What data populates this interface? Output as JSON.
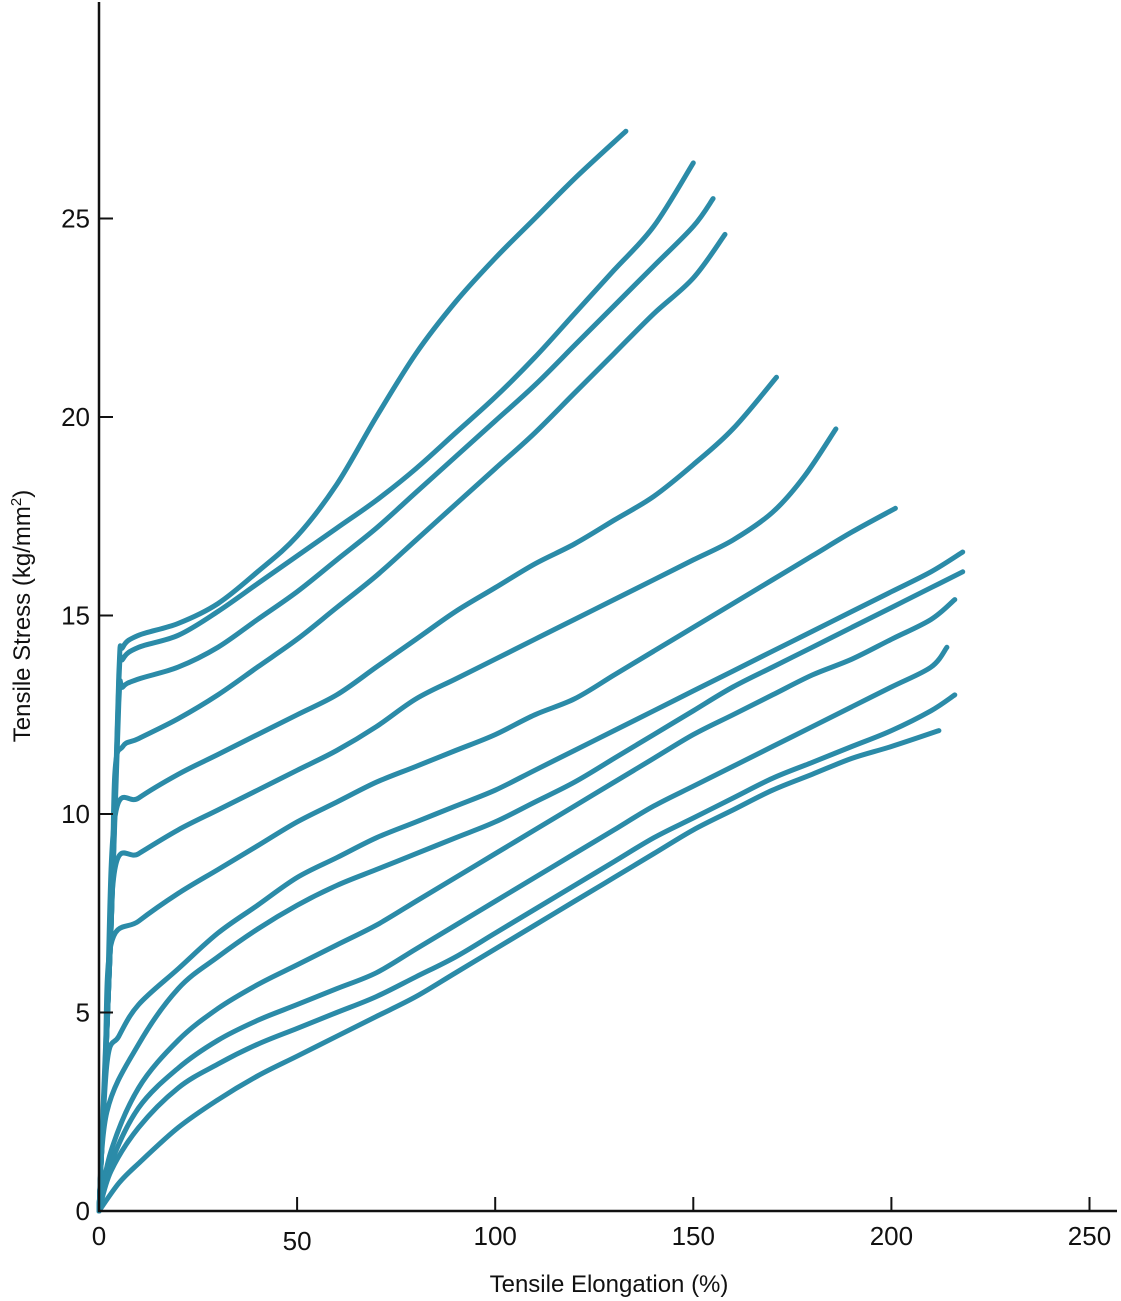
{
  "chart_data": {
    "type": "line",
    "xlabel": "Tensile Elongation (%)",
    "ylabel_main": "Tensile Stress (kg/mm",
    "ylabel_sup": "2",
    "ylabel_end": ")",
    "xlim": [
      0,
      258
    ],
    "ylim": [
      0,
      30.5
    ],
    "xticks": [
      0,
      50,
      100,
      150,
      200,
      250
    ],
    "yticks": [
      0,
      5,
      10,
      15,
      20,
      25
    ],
    "grid": false,
    "line_color": "#2b8ba8",
    "series": [
      {
        "points": [
          [
            0,
            0
          ],
          [
            3,
            7
          ],
          [
            5,
            13.5
          ],
          [
            6,
            14.2
          ],
          [
            10,
            14.5
          ],
          [
            20,
            14.8
          ],
          [
            30,
            15.3
          ],
          [
            40,
            16.1
          ],
          [
            50,
            17.0
          ],
          [
            60,
            18.3
          ],
          [
            70,
            20.0
          ],
          [
            80,
            21.6
          ],
          [
            90,
            22.9
          ],
          [
            100,
            24.0
          ],
          [
            110,
            25.0
          ],
          [
            120,
            26.0
          ],
          [
            133,
            27.2
          ]
        ]
      },
      {
        "points": [
          [
            0,
            0
          ],
          [
            3,
            7
          ],
          [
            5,
            13.3
          ],
          [
            6,
            13.9
          ],
          [
            10,
            14.2
          ],
          [
            20,
            14.5
          ],
          [
            30,
            15.1
          ],
          [
            40,
            15.8
          ],
          [
            50,
            16.5
          ],
          [
            60,
            17.2
          ],
          [
            70,
            17.9
          ],
          [
            80,
            18.7
          ],
          [
            90,
            19.6
          ],
          [
            100,
            20.5
          ],
          [
            110,
            21.5
          ],
          [
            120,
            22.6
          ],
          [
            130,
            23.7
          ],
          [
            140,
            24.8
          ],
          [
            150,
            26.4
          ]
        ]
      },
      {
        "points": [
          [
            0,
            0
          ],
          [
            3,
            7
          ],
          [
            5,
            12.8
          ],
          [
            6,
            13.2
          ],
          [
            10,
            13.4
          ],
          [
            20,
            13.7
          ],
          [
            30,
            14.2
          ],
          [
            40,
            14.9
          ],
          [
            50,
            15.6
          ],
          [
            60,
            16.4
          ],
          [
            70,
            17.2
          ],
          [
            80,
            18.1
          ],
          [
            90,
            19.0
          ],
          [
            100,
            19.9
          ],
          [
            110,
            20.8
          ],
          [
            120,
            21.8
          ],
          [
            130,
            22.8
          ],
          [
            140,
            23.8
          ],
          [
            150,
            24.8
          ],
          [
            155,
            25.5
          ]
        ]
      },
      {
        "points": [
          [
            0,
            0
          ],
          [
            3,
            7
          ],
          [
            4,
            11.0
          ],
          [
            6,
            11.7
          ],
          [
            10,
            11.9
          ],
          [
            20,
            12.4
          ],
          [
            30,
            13.0
          ],
          [
            40,
            13.7
          ],
          [
            50,
            14.4
          ],
          [
            60,
            15.2
          ],
          [
            70,
            16.0
          ],
          [
            80,
            16.9
          ],
          [
            90,
            17.8
          ],
          [
            100,
            18.7
          ],
          [
            110,
            19.6
          ],
          [
            120,
            20.6
          ],
          [
            130,
            21.6
          ],
          [
            140,
            22.6
          ],
          [
            150,
            23.5
          ],
          [
            158,
            24.6
          ]
        ]
      },
      {
        "points": [
          [
            0,
            0
          ],
          [
            2,
            5
          ],
          [
            4,
            9.9
          ],
          [
            10,
            10.4
          ],
          [
            20,
            11.0
          ],
          [
            30,
            11.5
          ],
          [
            40,
            12.0
          ],
          [
            50,
            12.5
          ],
          [
            60,
            13.0
          ],
          [
            70,
            13.7
          ],
          [
            80,
            14.4
          ],
          [
            90,
            15.1
          ],
          [
            100,
            15.7
          ],
          [
            110,
            16.3
          ],
          [
            120,
            16.8
          ],
          [
            130,
            17.4
          ],
          [
            140,
            18.0
          ],
          [
            150,
            18.8
          ],
          [
            160,
            19.7
          ],
          [
            171,
            21.0
          ]
        ]
      },
      {
        "points": [
          [
            0,
            0
          ],
          [
            2,
            4.5
          ],
          [
            4,
            8.6
          ],
          [
            10,
            9.0
          ],
          [
            20,
            9.6
          ],
          [
            30,
            10.1
          ],
          [
            40,
            10.6
          ],
          [
            50,
            11.1
          ],
          [
            60,
            11.6
          ],
          [
            70,
            12.2
          ],
          [
            80,
            12.9
          ],
          [
            90,
            13.4
          ],
          [
            100,
            13.9
          ],
          [
            110,
            14.4
          ],
          [
            120,
            14.9
          ],
          [
            130,
            15.4
          ],
          [
            140,
            15.9
          ],
          [
            150,
            16.4
          ],
          [
            160,
            16.9
          ],
          [
            170,
            17.6
          ],
          [
            178,
            18.5
          ],
          [
            186,
            19.7
          ]
        ]
      },
      {
        "points": [
          [
            0,
            0
          ],
          [
            1.5,
            3.5
          ],
          [
            3,
            6.7
          ],
          [
            10,
            7.3
          ],
          [
            20,
            8.0
          ],
          [
            30,
            8.6
          ],
          [
            40,
            9.2
          ],
          [
            50,
            9.8
          ],
          [
            60,
            10.3
          ],
          [
            70,
            10.8
          ],
          [
            80,
            11.2
          ],
          [
            90,
            11.6
          ],
          [
            100,
            12.0
          ],
          [
            110,
            12.5
          ],
          [
            120,
            12.9
          ],
          [
            130,
            13.5
          ],
          [
            140,
            14.1
          ],
          [
            150,
            14.7
          ],
          [
            160,
            15.3
          ],
          [
            170,
            15.9
          ],
          [
            180,
            16.5
          ],
          [
            190,
            17.1
          ],
          [
            201,
            17.7
          ]
        ]
      },
      {
        "points": [
          [
            0,
            0
          ],
          [
            2,
            3.7
          ],
          [
            5,
            4.4
          ],
          [
            10,
            5.2
          ],
          [
            20,
            6.1
          ],
          [
            30,
            7.0
          ],
          [
            40,
            7.7
          ],
          [
            50,
            8.4
          ],
          [
            60,
            8.9
          ],
          [
            70,
            9.4
          ],
          [
            80,
            9.8
          ],
          [
            90,
            10.2
          ],
          [
            100,
            10.6
          ],
          [
            110,
            11.1
          ],
          [
            120,
            11.6
          ],
          [
            130,
            12.1
          ],
          [
            140,
            12.6
          ],
          [
            150,
            13.1
          ],
          [
            160,
            13.6
          ],
          [
            170,
            14.1
          ],
          [
            180,
            14.6
          ],
          [
            190,
            15.1
          ],
          [
            200,
            15.6
          ],
          [
            210,
            16.1
          ],
          [
            218,
            16.6
          ]
        ]
      },
      {
        "points": [
          [
            0,
            0
          ],
          [
            2,
            2.5
          ],
          [
            10,
            4.2
          ],
          [
            20,
            5.6
          ],
          [
            30,
            6.4
          ],
          [
            40,
            7.1
          ],
          [
            50,
            7.7
          ],
          [
            60,
            8.2
          ],
          [
            70,
            8.6
          ],
          [
            80,
            9.0
          ],
          [
            90,
            9.4
          ],
          [
            100,
            9.8
          ],
          [
            110,
            10.3
          ],
          [
            120,
            10.8
          ],
          [
            130,
            11.4
          ],
          [
            140,
            12.0
          ],
          [
            150,
            12.6
          ],
          [
            160,
            13.2
          ],
          [
            170,
            13.7
          ],
          [
            180,
            14.2
          ],
          [
            190,
            14.7
          ],
          [
            200,
            15.2
          ],
          [
            210,
            15.7
          ],
          [
            218,
            16.1
          ]
        ]
      },
      {
        "points": [
          [
            0,
            0
          ],
          [
            3,
            1.5
          ],
          [
            10,
            3.1
          ],
          [
            20,
            4.3
          ],
          [
            30,
            5.1
          ],
          [
            40,
            5.7
          ],
          [
            50,
            6.2
          ],
          [
            60,
            6.7
          ],
          [
            70,
            7.2
          ],
          [
            80,
            7.8
          ],
          [
            90,
            8.4
          ],
          [
            100,
            9.0
          ],
          [
            110,
            9.6
          ],
          [
            120,
            10.2
          ],
          [
            130,
            10.8
          ],
          [
            140,
            11.4
          ],
          [
            150,
            12.0
          ],
          [
            160,
            12.5
          ],
          [
            170,
            13.0
          ],
          [
            180,
            13.5
          ],
          [
            190,
            13.9
          ],
          [
            200,
            14.4
          ],
          [
            210,
            14.9
          ],
          [
            216,
            15.4
          ]
        ]
      },
      {
        "points": [
          [
            0,
            0
          ],
          [
            3,
            1.2
          ],
          [
            10,
            2.6
          ],
          [
            20,
            3.6
          ],
          [
            30,
            4.3
          ],
          [
            40,
            4.8
          ],
          [
            50,
            5.2
          ],
          [
            60,
            5.6
          ],
          [
            70,
            6.0
          ],
          [
            80,
            6.6
          ],
          [
            90,
            7.2
          ],
          [
            100,
            7.8
          ],
          [
            110,
            8.4
          ],
          [
            120,
            9.0
          ],
          [
            130,
            9.6
          ],
          [
            140,
            10.2
          ],
          [
            150,
            10.7
          ],
          [
            160,
            11.2
          ],
          [
            170,
            11.7
          ],
          [
            180,
            12.2
          ],
          [
            190,
            12.7
          ],
          [
            200,
            13.2
          ],
          [
            210,
            13.7
          ],
          [
            214,
            14.2
          ]
        ]
      },
      {
        "points": [
          [
            0,
            0
          ],
          [
            3,
            1.0
          ],
          [
            10,
            2.1
          ],
          [
            20,
            3.1
          ],
          [
            30,
            3.7
          ],
          [
            40,
            4.2
          ],
          [
            50,
            4.6
          ],
          [
            60,
            5.0
          ],
          [
            70,
            5.4
          ],
          [
            80,
            5.9
          ],
          [
            90,
            6.4
          ],
          [
            100,
            7.0
          ],
          [
            110,
            7.6
          ],
          [
            120,
            8.2
          ],
          [
            130,
            8.8
          ],
          [
            140,
            9.4
          ],
          [
            150,
            9.9
          ],
          [
            160,
            10.4
          ],
          [
            170,
            10.9
          ],
          [
            180,
            11.3
          ],
          [
            190,
            11.7
          ],
          [
            200,
            12.1
          ],
          [
            210,
            12.6
          ],
          [
            216,
            13.0
          ]
        ]
      },
      {
        "points": [
          [
            0,
            0
          ],
          [
            5,
            0.7
          ],
          [
            10,
            1.2
          ],
          [
            20,
            2.1
          ],
          [
            30,
            2.8
          ],
          [
            40,
            3.4
          ],
          [
            50,
            3.9
          ],
          [
            60,
            4.4
          ],
          [
            70,
            4.9
          ],
          [
            80,
            5.4
          ],
          [
            90,
            6.0
          ],
          [
            100,
            6.6
          ],
          [
            110,
            7.2
          ],
          [
            120,
            7.8
          ],
          [
            130,
            8.4
          ],
          [
            140,
            9.0
          ],
          [
            150,
            9.6
          ],
          [
            160,
            10.1
          ],
          [
            170,
            10.6
          ],
          [
            180,
            11.0
          ],
          [
            190,
            11.4
          ],
          [
            200,
            11.7
          ],
          [
            212,
            12.1
          ]
        ]
      }
    ]
  }
}
